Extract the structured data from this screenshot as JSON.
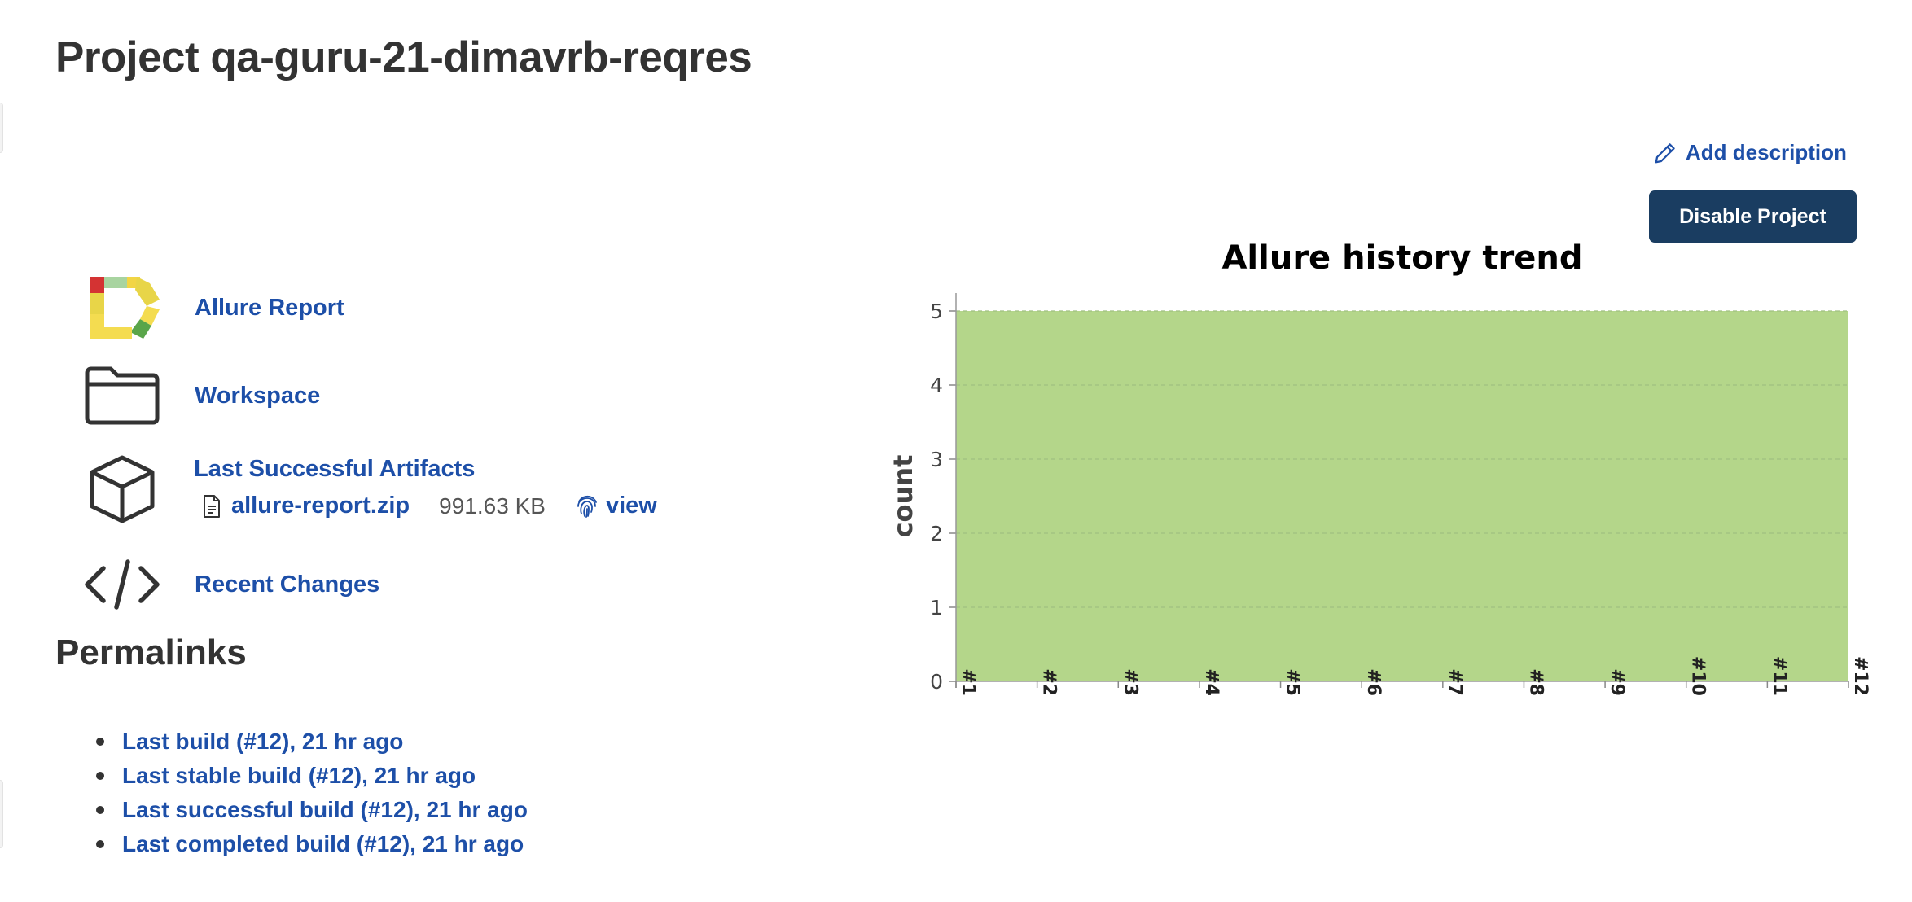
{
  "page": {
    "title": "Project qa-guru-21-dimavrb-reqres"
  },
  "actions": {
    "add_description": "Add description",
    "disable_project": "Disable Project"
  },
  "tasks": [
    {
      "label": "Allure Report",
      "icon": "allure-logo-icon"
    },
    {
      "label": "Workspace",
      "icon": "folder-icon"
    },
    {
      "label": "Last Successful Artifacts",
      "icon": "package-icon"
    },
    {
      "label": "Recent Changes",
      "icon": "code-icon"
    }
  ],
  "artifacts": {
    "file_name": "allure-report.zip",
    "file_size": "991.63 KB",
    "view_label": "view"
  },
  "permalinks": {
    "title": "Permalinks",
    "items": [
      "Last build (#12), 21 hr ago",
      "Last stable build (#12), 21 hr ago",
      "Last successful build (#12), 21 hr ago",
      "Last completed build (#12), 21 hr ago"
    ]
  },
  "colors": {
    "link": "#1d4fa8",
    "button": "#1a3d61",
    "passed_area": "#b4d68a"
  },
  "chart_data": {
    "type": "area",
    "title": "Allure history trend",
    "xlabel": "",
    "ylabel": "count",
    "categories": [
      "#1",
      "#2",
      "#3",
      "#4",
      "#5",
      "#6",
      "#7",
      "#8",
      "#9",
      "#10",
      "#11",
      "#12"
    ],
    "series": [
      {
        "values": [
          5,
          5,
          5,
          5,
          5,
          5,
          5,
          5,
          5,
          5,
          5,
          5
        ],
        "color": "#b4d68a"
      }
    ],
    "ylim": [
      0,
      5
    ],
    "yticks": [
      0,
      1,
      2,
      3,
      4,
      5
    ],
    "grid": true
  }
}
